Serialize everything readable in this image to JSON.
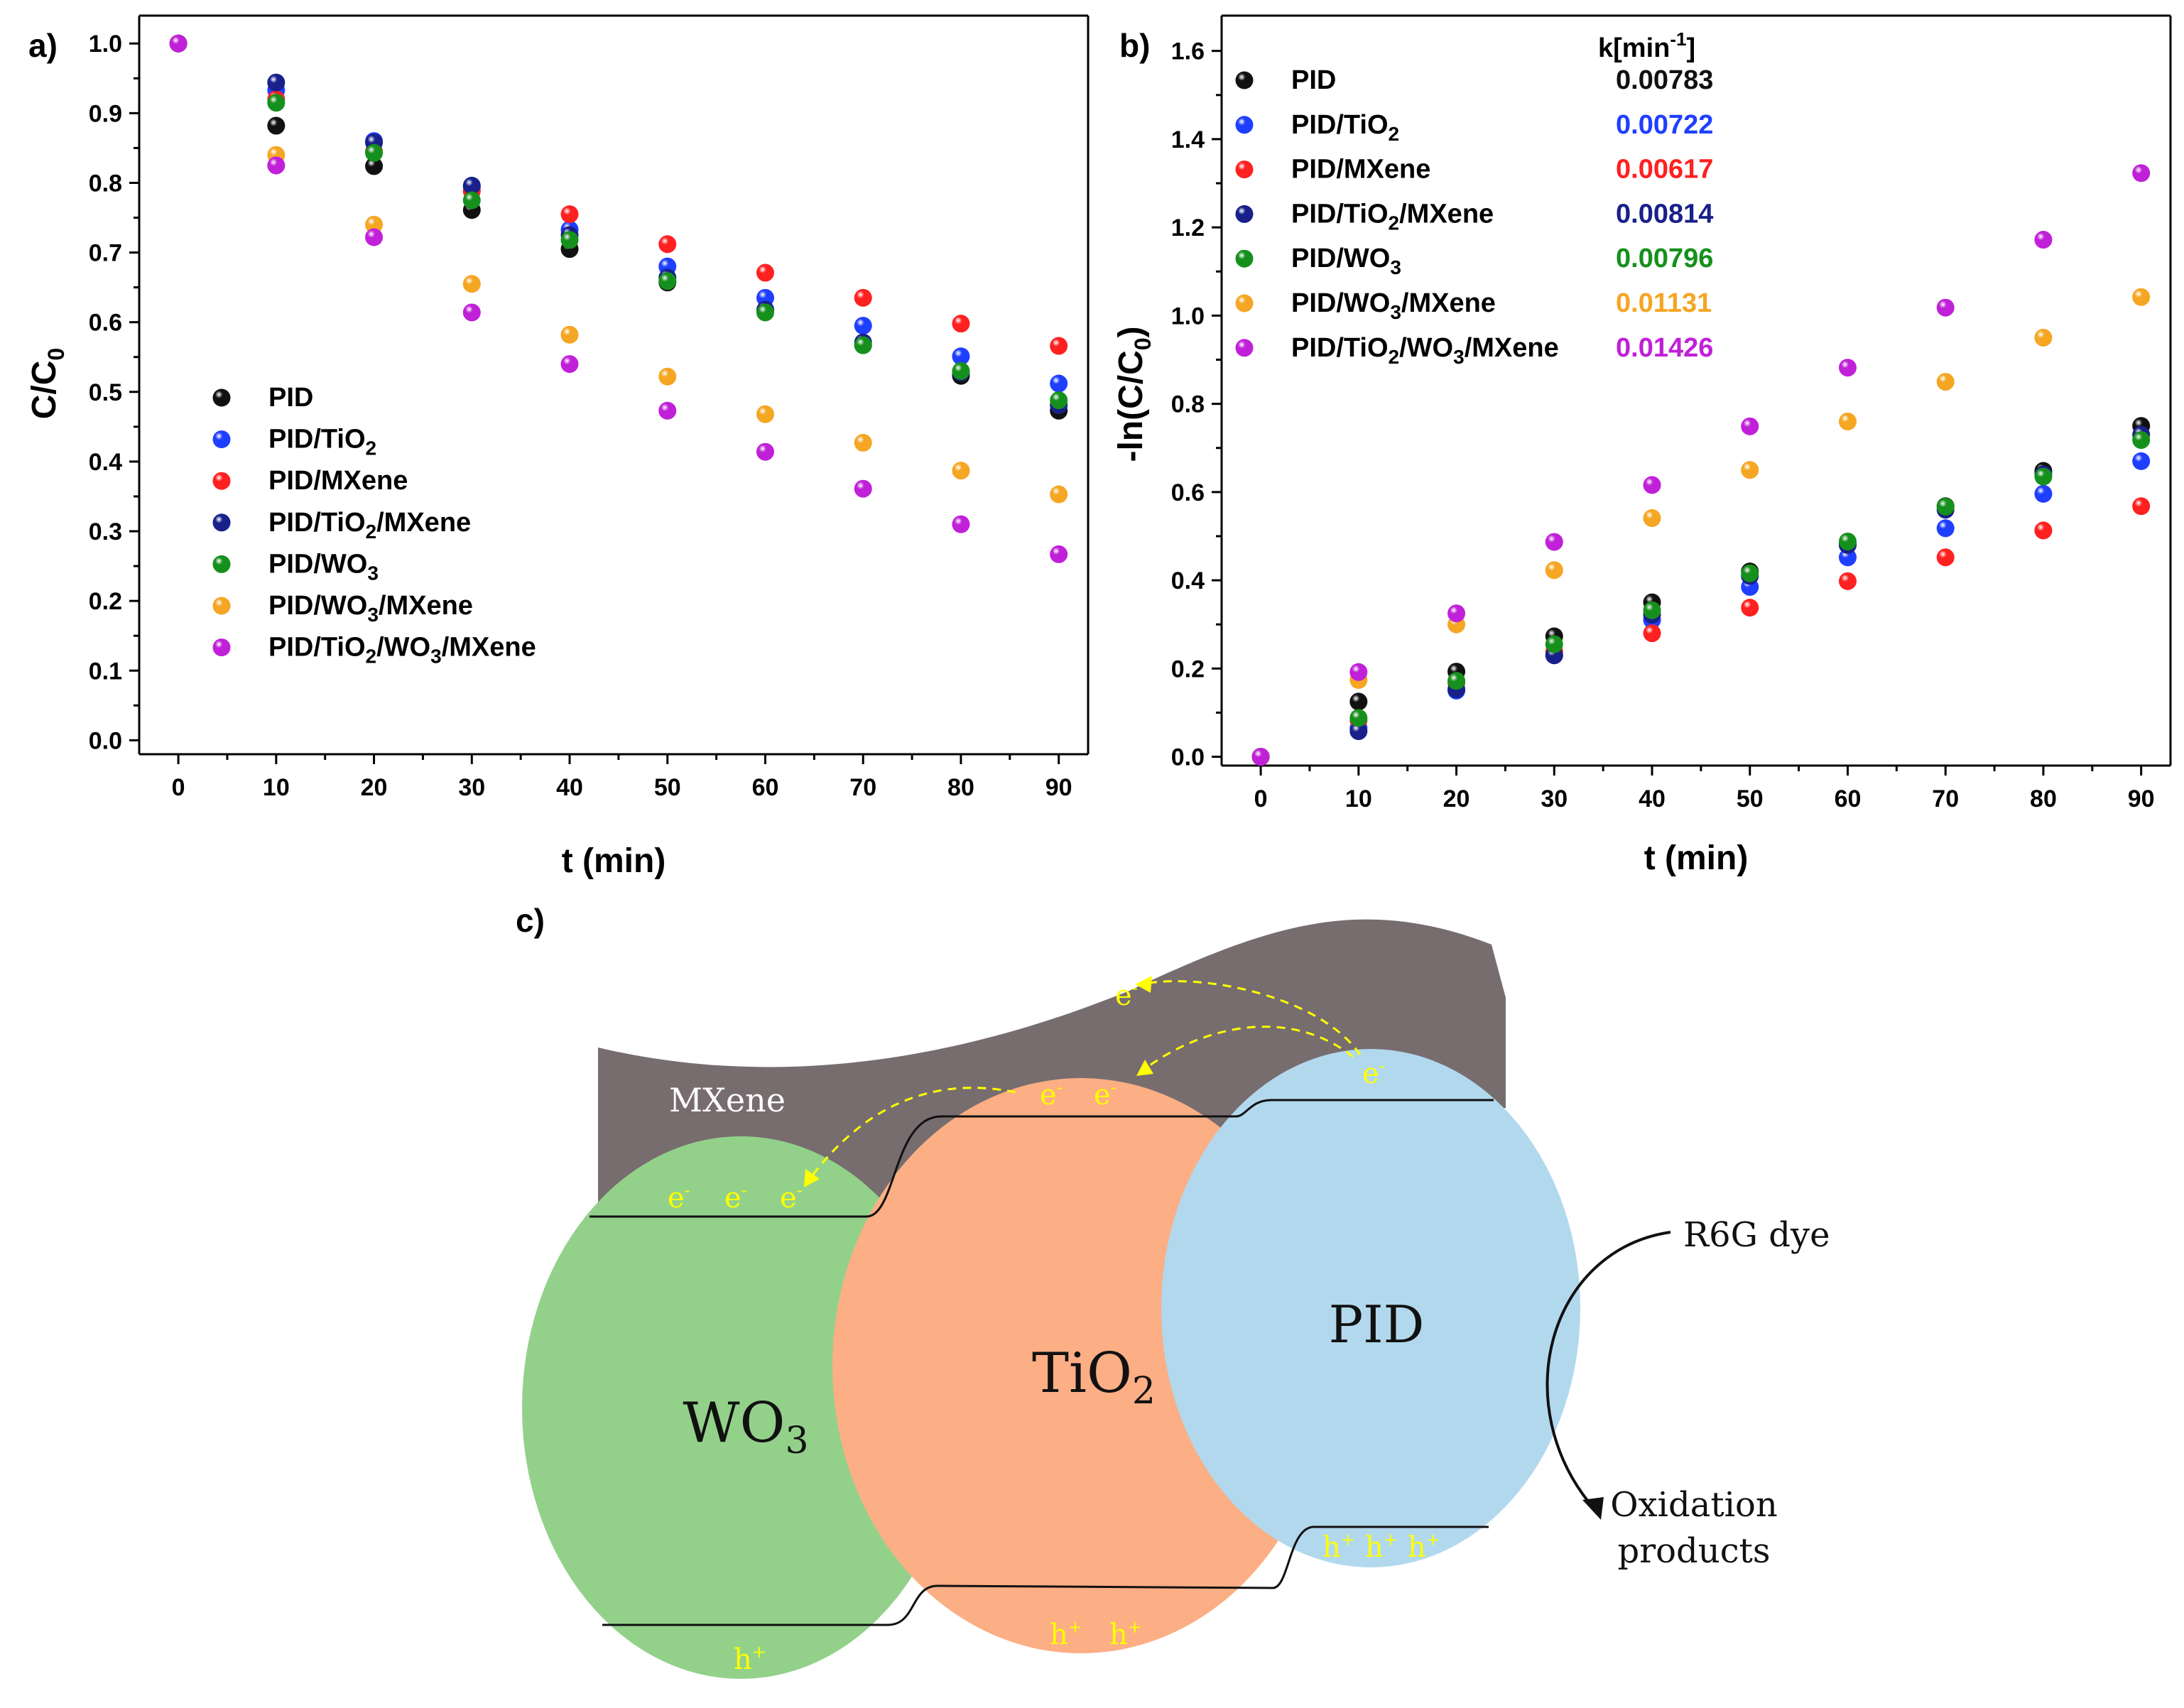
{
  "chart_data": [
    {
      "panel": "a)",
      "type": "scatter",
      "xlabel": "t (min)",
      "ylabel_main": "C/C",
      "ylabel_sub": "0",
      "xlim": [
        -4,
        93
      ],
      "ylim": [
        -0.02,
        1.04
      ],
      "xticks": [
        0,
        10,
        20,
        30,
        40,
        50,
        60,
        70,
        80,
        90
      ],
      "yticks": [
        0.0,
        0.1,
        0.2,
        0.3,
        0.4,
        0.5,
        0.6,
        0.7,
        0.8,
        0.9,
        1.0
      ],
      "legend_position": "lower-left",
      "x": [
        0,
        10,
        20,
        30,
        40,
        50,
        60,
        70,
        80,
        90
      ],
      "series": [
        {
          "name": "PID",
          "parts": [
            {
              "t": "PID"
            }
          ],
          "color": "#111111",
          "values": [
            1.0,
            0.882,
            0.824,
            0.761,
            0.705,
            0.657,
            0.617,
            0.567,
            0.523,
            0.473
          ]
        },
        {
          "name": "PID/TiO2",
          "parts": [
            {
              "t": "PID/TiO"
            },
            {
              "t": "2",
              "sub": true
            }
          ],
          "color": "#1f3fff",
          "values": [
            1.0,
            0.933,
            0.86,
            0.794,
            0.733,
            0.68,
            0.635,
            0.595,
            0.551,
            0.512
          ]
        },
        {
          "name": "PID/MXene",
          "parts": [
            {
              "t": "PID/MXene"
            }
          ],
          "color": "#ff2020",
          "values": [
            1.0,
            0.92,
            0.845,
            0.788,
            0.755,
            0.712,
            0.671,
            0.635,
            0.598,
            0.566
          ]
        },
        {
          "name": "PID/TiO2/MXene",
          "parts": [
            {
              "t": "PID/TiO"
            },
            {
              "t": "2",
              "sub": true
            },
            {
              "t": "/MXene"
            }
          ],
          "color": "#18208a",
          "values": [
            1.0,
            0.944,
            0.858,
            0.796,
            0.725,
            0.664,
            0.618,
            0.571,
            0.528,
            0.481
          ]
        },
        {
          "name": "PID/WO3",
          "parts": [
            {
              "t": "PID/WO"
            },
            {
              "t": "3",
              "sub": true
            }
          ],
          "color": "#16901c",
          "values": [
            1.0,
            0.915,
            0.843,
            0.775,
            0.718,
            0.659,
            0.614,
            0.567,
            0.53,
            0.488
          ]
        },
        {
          "name": "PID/WO3/MXene",
          "parts": [
            {
              "t": "PID/WO"
            },
            {
              "t": "3",
              "sub": true
            },
            {
              "t": "/MXene"
            }
          ],
          "color": "#f5a623",
          "values": [
            1.0,
            0.84,
            0.74,
            0.655,
            0.582,
            0.522,
            0.468,
            0.427,
            0.387,
            0.353
          ]
        },
        {
          "name": "PID/TiO2/WO3/MXene",
          "parts": [
            {
              "t": "PID/TiO"
            },
            {
              "t": "2",
              "sub": true
            },
            {
              "t": "/WO"
            },
            {
              "t": "3",
              "sub": true
            },
            {
              "t": "/MXene"
            }
          ],
          "color": "#c020d8",
          "values": [
            1.0,
            0.825,
            0.722,
            0.614,
            0.54,
            0.473,
            0.414,
            0.361,
            0.31,
            0.267
          ]
        }
      ]
    },
    {
      "panel": "b)",
      "type": "scatter",
      "xlabel": "t (min)",
      "ylabel_main": "-ln(C/C",
      "ylabel_sub": "0",
      "ylabel_end": ")",
      "xlim": [
        -4,
        93
      ],
      "ylim": [
        -0.02,
        1.68
      ],
      "xticks": [
        0,
        10,
        20,
        30,
        40,
        50,
        60,
        70,
        80,
        90
      ],
      "yticks": [
        0.0,
        0.2,
        0.4,
        0.6,
        0.8,
        1.0,
        1.2,
        1.4,
        1.6
      ],
      "yticks_text": [
        "0.0",
        "0.2",
        "0.4",
        "0.6",
        "0.8",
        "1.0",
        "1.2",
        "1.4",
        "1.6"
      ],
      "legend_position": "top-left",
      "k_header_main": "k[min",
      "k_header_sup": "-1",
      "k_header_end": "]",
      "x": [
        0,
        10,
        20,
        30,
        40,
        50,
        60,
        70,
        80,
        90
      ],
      "series": [
        {
          "name": "PID",
          "parts": [
            {
              "t": "PID"
            }
          ],
          "k": "0.00783",
          "color": "#111111",
          "values": [
            0.0,
            0.125,
            0.193,
            0.273,
            0.35,
            0.42,
            0.482,
            0.568,
            0.648,
            0.75
          ]
        },
        {
          "name": "PID/TiO2",
          "parts": [
            {
              "t": "PID/TiO"
            },
            {
              "t": "2",
              "sub": true
            }
          ],
          "k": "0.00722",
          "color": "#1f3fff",
          "values": [
            0.0,
            0.065,
            0.15,
            0.23,
            0.31,
            0.385,
            0.452,
            0.518,
            0.596,
            0.67
          ]
        },
        {
          "name": "PID/MXene",
          "parts": [
            {
              "t": "PID/MXene"
            }
          ],
          "k": "0.00617",
          "color": "#ff2020",
          "values": [
            0.0,
            0.083,
            0.168,
            0.238,
            0.28,
            0.338,
            0.398,
            0.452,
            0.513,
            0.568
          ]
        },
        {
          "name": "PID/TiO2/MXene",
          "parts": [
            {
              "t": "PID/TiO"
            },
            {
              "t": "2",
              "sub": true
            },
            {
              "t": "/MXene"
            }
          ],
          "k": "0.00814",
          "color": "#18208a",
          "values": [
            0.0,
            0.058,
            0.153,
            0.23,
            0.322,
            0.41,
            0.48,
            0.56,
            0.64,
            0.73
          ]
        },
        {
          "name": "PID/WO3",
          "parts": [
            {
              "t": "PID/WO"
            },
            {
              "t": "3",
              "sub": true
            }
          ],
          "k": "0.00796",
          "color": "#16901c",
          "values": [
            0.0,
            0.088,
            0.172,
            0.255,
            0.332,
            0.416,
            0.488,
            0.567,
            0.635,
            0.718
          ]
        },
        {
          "name": "PID/WO3/MXene",
          "parts": [
            {
              "t": "PID/WO"
            },
            {
              "t": "3",
              "sub": true
            },
            {
              "t": "/MXene"
            }
          ],
          "k": "0.01131",
          "color": "#f5a623",
          "values": [
            0.0,
            0.174,
            0.3,
            0.423,
            0.541,
            0.65,
            0.76,
            0.85,
            0.95,
            1.042
          ]
        },
        {
          "name": "PID/TiO2/WO3/MXene",
          "parts": [
            {
              "t": "PID/TiO"
            },
            {
              "t": "2",
              "sub": true
            },
            {
              "t": "/WO"
            },
            {
              "t": "3",
              "sub": true
            },
            {
              "t": "/MXene"
            }
          ],
          "k": "0.01426",
          "color": "#c020d8",
          "values": [
            0.0,
            0.192,
            0.325,
            0.487,
            0.616,
            0.749,
            0.882,
            1.018,
            1.172,
            1.323
          ]
        }
      ]
    }
  ],
  "diagram": {
    "panel_label": "c)",
    "mxene_label": "MXene",
    "wo3_main": "WO",
    "wo3_sub": "3",
    "tio2_main": "TiO",
    "tio2_sub": "2",
    "pid_label": "PID",
    "dye_label": "R6G dye",
    "products_line1": "Oxidation",
    "products_line2": "products",
    "electron": "e",
    "electron_sup": "-",
    "hole": "h",
    "hole_sup": "+",
    "colors": {
      "mxene": "#776d6f",
      "wo3": "#93d18a",
      "tio2": "#fcae84",
      "pid": "#b2d8ee",
      "carrier": "#ffff00"
    }
  }
}
